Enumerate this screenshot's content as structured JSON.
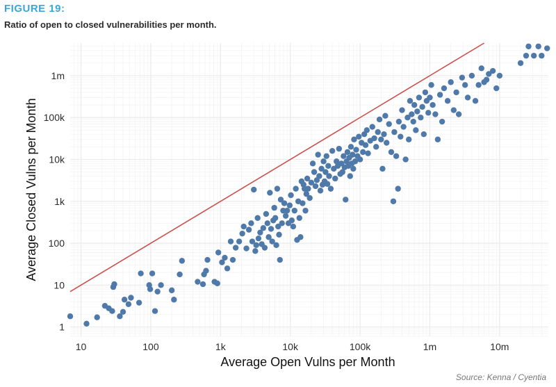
{
  "figure_label": "FIGURE 19:",
  "subtitle": "Ratio of open to closed vulnerabilities per month.",
  "source": "Source: Kenna / Cyentia",
  "colors": {
    "accent": "#3aa6d8",
    "points": "#4f79a8",
    "line": "#c9504b",
    "grid": "#ebebeb"
  },
  "chart_data": {
    "type": "scatter",
    "title": "",
    "xlabel": "Average Open Vulns per Month",
    "ylabel": "Average Closed Vulns per Month",
    "x_scale": "log10",
    "y_scale": "log10",
    "xlim": [
      7,
      50000000
    ],
    "ylim": [
      0.6,
      6000000
    ],
    "x_ticks": [
      {
        "v": 10,
        "label": "10"
      },
      {
        "v": 100,
        "label": "100"
      },
      {
        "v": 1000,
        "label": "1k"
      },
      {
        "v": 10000,
        "label": "10k"
      },
      {
        "v": 100000,
        "label": "100k"
      },
      {
        "v": 1000000,
        "label": "1m"
      },
      {
        "v": 10000000,
        "label": "10m"
      }
    ],
    "y_ticks": [
      {
        "v": 1,
        "label": "1"
      },
      {
        "v": 10,
        "label": "10"
      },
      {
        "v": 100,
        "label": "100"
      },
      {
        "v": 1000,
        "label": "1k"
      },
      {
        "v": 10000,
        "label": "10k"
      },
      {
        "v": 100000,
        "label": "100k"
      },
      {
        "v": 1000000,
        "label": "1m"
      }
    ],
    "grid": true,
    "reference_line": "y = x",
    "points": [
      [
        7,
        1.8
      ],
      [
        12,
        1.2
      ],
      [
        17,
        1.7
      ],
      [
        22,
        3.2
      ],
      [
        25,
        2.8
      ],
      [
        28,
        2.4
      ],
      [
        29,
        9
      ],
      [
        30,
        10.5
      ],
      [
        36,
        1.8
      ],
      [
        40,
        2.3
      ],
      [
        42,
        4.5
      ],
      [
        48,
        3.5
      ],
      [
        52,
        5
      ],
      [
        68,
        3.8
      ],
      [
        72,
        19
      ],
      [
        95,
        10
      ],
      [
        98,
        8
      ],
      [
        105,
        19
      ],
      [
        115,
        2.4
      ],
      [
        125,
        7
      ],
      [
        140,
        10
      ],
      [
        200,
        7.5
      ],
      [
        215,
        4.5
      ],
      [
        260,
        18
      ],
      [
        280,
        38
      ],
      [
        470,
        12
      ],
      [
        560,
        10.5
      ],
      [
        580,
        18
      ],
      [
        620,
        22
      ],
      [
        650,
        40
      ],
      [
        820,
        12
      ],
      [
        900,
        11
      ],
      [
        930,
        60
      ],
      [
        1050,
        35
      ],
      [
        1150,
        45
      ],
      [
        1250,
        25
      ],
      [
        1400,
        110
      ],
      [
        1500,
        40
      ],
      [
        1650,
        78
      ],
      [
        1850,
        110
      ],
      [
        2050,
        170
      ],
      [
        2150,
        250
      ],
      [
        2350,
        75
      ],
      [
        2550,
        210
      ],
      [
        2750,
        300
      ],
      [
        2850,
        110
      ],
      [
        3000,
        1900
      ],
      [
        3150,
        65
      ],
      [
        3250,
        90
      ],
      [
        3400,
        400
      ],
      [
        3500,
        130
      ],
      [
        3700,
        180
      ],
      [
        3900,
        95
      ],
      [
        4100,
        230
      ],
      [
        4300,
        78
      ],
      [
        4500,
        500
      ],
      [
        4700,
        300
      ],
      [
        4900,
        140
      ],
      [
        5100,
        1600
      ],
      [
        5300,
        220
      ],
      [
        5500,
        110
      ],
      [
        5700,
        350
      ],
      [
        5900,
        700
      ],
      [
        6100,
        400
      ],
      [
        6300,
        90
      ],
      [
        6500,
        2000
      ],
      [
        6700,
        250
      ],
      [
        6900,
        160
      ],
      [
        7100,
        40
      ],
      [
        7300,
        1100
      ],
      [
        7600,
        300
      ],
      [
        7900,
        600
      ],
      [
        8200,
        900
      ],
      [
        8600,
        450
      ],
      [
        9000,
        600
      ],
      [
        9400,
        300
      ],
      [
        9800,
        800
      ],
      [
        10200,
        1400
      ],
      [
        10500,
        350
      ],
      [
        11000,
        250
      ],
      [
        11500,
        600
      ],
      [
        12000,
        2000
      ],
      [
        12500,
        120
      ],
      [
        13000,
        1000
      ],
      [
        13500,
        400
      ],
      [
        14000,
        140
      ],
      [
        14500,
        3000
      ],
      [
        15000,
        900
      ],
      [
        15500,
        2500
      ],
      [
        16000,
        2000
      ],
      [
        16500,
        600
      ],
      [
        17000,
        1500
      ],
      [
        17500,
        3500
      ],
      [
        18000,
        2000
      ],
      [
        19000,
        1200
      ],
      [
        20000,
        2800
      ],
      [
        21000,
        8000
      ],
      [
        22000,
        5000
      ],
      [
        23000,
        2300
      ],
      [
        24000,
        3200
      ],
      [
        25000,
        13000
      ],
      [
        26000,
        4000
      ],
      [
        27000,
        1800
      ],
      [
        28000,
        6000
      ],
      [
        29000,
        2500
      ],
      [
        30000,
        9000
      ],
      [
        31000,
        3000
      ],
      [
        32000,
        5000
      ],
      [
        33000,
        12000
      ],
      [
        34000,
        2600
      ],
      [
        35000,
        7000
      ],
      [
        36000,
        4000
      ],
      [
        38000,
        2000
      ],
      [
        40000,
        16000
      ],
      [
        42000,
        6000
      ],
      [
        44000,
        3500
      ],
      [
        46000,
        9000
      ],
      [
        48000,
        7000
      ],
      [
        50000,
        18000
      ],
      [
        52000,
        4500
      ],
      [
        54000,
        8000
      ],
      [
        56000,
        5000
      ],
      [
        58000,
        12000
      ],
      [
        60000,
        6500
      ],
      [
        62000,
        1100
      ],
      [
        64000,
        9000
      ],
      [
        66000,
        15000
      ],
      [
        68000,
        7000
      ],
      [
        70000,
        11000
      ],
      [
        72000,
        4000
      ],
      [
        74000,
        20000
      ],
      [
        76000,
        8000
      ],
      [
        78000,
        13000
      ],
      [
        80000,
        6000
      ],
      [
        82000,
        30000
      ],
      [
        85000,
        9000
      ],
      [
        88000,
        17000
      ],
      [
        92000,
        12000
      ],
      [
        96000,
        35000
      ],
      [
        100000,
        10000
      ],
      [
        105000,
        25000
      ],
      [
        110000,
        15000
      ],
      [
        115000,
        40000
      ],
      [
        120000,
        22000
      ],
      [
        125000,
        50000
      ],
      [
        130000,
        14000
      ],
      [
        140000,
        28000
      ],
      [
        150000,
        60000
      ],
      [
        160000,
        32000
      ],
      [
        170000,
        20000
      ],
      [
        180000,
        45000
      ],
      [
        190000,
        90000
      ],
      [
        200000,
        30000
      ],
      [
        210000,
        6000
      ],
      [
        220000,
        40000
      ],
      [
        230000,
        110000
      ],
      [
        240000,
        25000
      ],
      [
        260000,
        70000
      ],
      [
        280000,
        15000
      ],
      [
        300000,
        1000
      ],
      [
        310000,
        45000
      ],
      [
        330000,
        12000
      ],
      [
        350000,
        2000
      ],
      [
        360000,
        80000
      ],
      [
        380000,
        35000
      ],
      [
        400000,
        150000
      ],
      [
        420000,
        60000
      ],
      [
        450000,
        10000
      ],
      [
        480000,
        100000
      ],
      [
        500000,
        30000
      ],
      [
        520000,
        250000
      ],
      [
        550000,
        120000
      ],
      [
        580000,
        80000
      ],
      [
        600000,
        200000
      ],
      [
        630000,
        50000
      ],
      [
        660000,
        140000
      ],
      [
        700000,
        300000
      ],
      [
        740000,
        100000
      ],
      [
        780000,
        180000
      ],
      [
        820000,
        40000
      ],
      [
        860000,
        400000
      ],
      [
        900000,
        250000
      ],
      [
        950000,
        130000
      ],
      [
        1000000,
        300000
      ],
      [
        1050000,
        600000
      ],
      [
        1100000,
        200000
      ],
      [
        1200000,
        120000
      ],
      [
        1300000,
        30000
      ],
      [
        1400000,
        350000
      ],
      [
        1500000,
        80000
      ],
      [
        1600000,
        500000
      ],
      [
        1800000,
        250000
      ],
      [
        2000000,
        700000
      ],
      [
        2200000,
        150000
      ],
      [
        2400000,
        400000
      ],
      [
        2600000,
        120000
      ],
      [
        2900000,
        900000
      ],
      [
        3200000,
        600000
      ],
      [
        3500000,
        300000
      ],
      [
        4000000,
        1000000
      ],
      [
        4500000,
        250000
      ],
      [
        5000000,
        600000
      ],
      [
        5500000,
        1500000
      ],
      [
        6000000,
        700000
      ],
      [
        6500000,
        800000
      ],
      [
        7000000,
        1100000
      ],
      [
        8000000,
        1300000
      ],
      [
        9000000,
        500000
      ],
      [
        10000000,
        1000000
      ],
      [
        20000000,
        2000000
      ],
      [
        24000000,
        3000000
      ],
      [
        26000000,
        5000000
      ],
      [
        31000000,
        3000000
      ],
      [
        36000000,
        5000000
      ],
      [
        40000000,
        3000000
      ],
      [
        48000000,
        4500000
      ]
    ]
  }
}
